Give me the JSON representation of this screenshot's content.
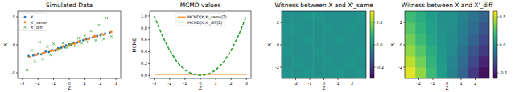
{
  "chart_data": [
    {
      "type": "scatter",
      "title": "Simulated Data",
      "x_label": "Z",
      "y_label": "X",
      "xlim": [
        -3.3,
        3.3
      ],
      "xticks": [
        -3,
        -2,
        -1,
        0,
        1,
        2,
        3
      ],
      "ylim": [
        -6,
        6
      ],
      "yticks": [
        -5,
        0,
        5
      ],
      "legend": "upper left",
      "series": [
        {
          "name": "X",
          "color": "#1f77b4",
          "marker": "circle",
          "x": [
            -2.6,
            -2.3,
            -2.0,
            -1.8,
            -1.5,
            -1.3,
            -1.1,
            -0.9,
            -0.7,
            -0.5,
            -0.3,
            -0.2,
            0,
            0.1,
            0.3,
            0.5,
            0.7,
            0.9,
            1.1,
            1.3,
            1.5,
            1.8,
            2.0,
            2.3,
            2.6
          ],
          "values": [
            -2.0,
            -1.9,
            -1.6,
            -1.7,
            -1.2,
            -1.3,
            -0.9,
            -1.0,
            -0.6,
            -0.5,
            -0.4,
            -0.1,
            0.1,
            0.0,
            0.3,
            0.4,
            0.7,
            0.8,
            1.0,
            1.2,
            1.3,
            1.6,
            1.7,
            2.0,
            2.2
          ]
        },
        {
          "name": "X'_same",
          "color": "#ff7f0e",
          "marker": "circle",
          "x": [
            -2.5,
            -2.2,
            -2.1,
            -1.7,
            -1.6,
            -1.2,
            -1.0,
            -0.8,
            -0.6,
            -0.4,
            -0.35,
            -0.1,
            0.05,
            0.2,
            0.35,
            0.6,
            0.65,
            1.0,
            1.2,
            1.25,
            1.6,
            1.7,
            2.1,
            2.2,
            2.7
          ],
          "values": [
            -2.2,
            -1.7,
            -1.8,
            -1.5,
            -1.4,
            -1.1,
            -1.0,
            -0.8,
            -0.7,
            -0.3,
            -0.2,
            -0.3,
            0.0,
            0.2,
            0.2,
            0.6,
            0.5,
            0.9,
            1.1,
            1.0,
            1.5,
            1.5,
            1.9,
            1.8,
            2.3
          ]
        },
        {
          "name": "X'_diff",
          "color": "#2ca02c",
          "marker": "x",
          "x": [
            -2.7,
            -2.4,
            -2.2,
            -1.9,
            -1.7,
            -1.4,
            -1.2,
            -1.0,
            -0.8,
            -0.6,
            -0.4,
            -0.2,
            0,
            0.2,
            0.4,
            0.6,
            0.8,
            1.0,
            1.2,
            1.4,
            1.7,
            1.9,
            2.2,
            2.4,
            2.7
          ],
          "values": [
            -4.5,
            -1.0,
            -3.0,
            0.5,
            -2.5,
            -0.3,
            -1.8,
            0.2,
            -1.0,
            -0.8,
            0.3,
            -0.5,
            0.1,
            0.4,
            -0.2,
            1.2,
            0.3,
            1.6,
            0.5,
            2.5,
            0.8,
            3.5,
            1.0,
            4.8,
            1.5
          ]
        }
      ]
    },
    {
      "type": "line",
      "title": "MCMD values",
      "x_label": "Z",
      "y_label": "MCMD",
      "x": [
        -3,
        -2.5,
        -2,
        -1.5,
        -1,
        -0.5,
        0,
        0.5,
        1,
        1.5,
        2,
        2.5,
        3
      ],
      "xlim": [
        -3.3,
        3.3
      ],
      "xticks": [
        -3,
        -2,
        -1,
        0,
        1,
        2,
        3
      ],
      "ylim": [
        -0.05,
        1.08
      ],
      "yticks": [
        {
          "value": 0,
          "label": "0.0"
        },
        0.2,
        0.4,
        0.6,
        0.8,
        {
          "value": 1,
          "label": "1.0"
        }
      ],
      "legend": "upper center",
      "series": [
        {
          "name": "MCMD(X,X'_same|Z)",
          "color": "#ff7f0e",
          "line_style": "solid",
          "values": [
            0.02,
            0.02,
            0.02,
            0.02,
            0.02,
            0.02,
            0.02,
            0.02,
            0.02,
            0.02,
            0.02,
            0.02,
            0.02
          ]
        },
        {
          "name": "MCMD(X,X'_diff|Z)",
          "color": "#2ca02c",
          "line_style": "dashed",
          "values": [
            1.0,
            0.68,
            0.42,
            0.22,
            0.09,
            0.02,
            0.0,
            0.02,
            0.09,
            0.22,
            0.42,
            0.68,
            1.0
          ]
        }
      ]
    },
    {
      "type": "heatmap",
      "title": "Witness between X and X'_same",
      "x_label": "Z",
      "y_label": "X",
      "xlim": [
        -3,
        3
      ],
      "xticks": [
        -2,
        -1,
        0,
        1,
        2
      ],
      "ylim": [
        -3,
        3
      ],
      "yticks": [
        -2,
        0,
        2
      ],
      "cells": [
        [
          0.01,
          0.0,
          0.01,
          0.0,
          0.0,
          0.01,
          0.0,
          0.01
        ],
        [
          0.0,
          0.01,
          0.0,
          0.0,
          0.01,
          0.0,
          0.01,
          0.0
        ],
        [
          0.01,
          0.0,
          0.0,
          0.01,
          0.0,
          0.0,
          0.0,
          0.01
        ],
        [
          0.0,
          0.0,
          0.01,
          0.0,
          0.0,
          0.01,
          0.0,
          0.0
        ],
        [
          0.01,
          0.01,
          0.0,
          0.0,
          0.01,
          0.0,
          0.01,
          0.0
        ],
        [
          0.0,
          0.0,
          0.01,
          0.01,
          0.0,
          0.0,
          0.0,
          0.01
        ]
      ],
      "colorbar_range": [
        -0.3,
        0.3
      ],
      "colorbar_ticks": [
        -0.2,
        {
          "value": 0,
          "label": "0.0"
        },
        0.2
      ]
    },
    {
      "type": "heatmap",
      "title": "Witness between X and X'_diff",
      "x_label": "Z",
      "y_label": "X",
      "xlim": [
        -3,
        3
      ],
      "xticks": [
        -2,
        -1,
        0,
        1,
        2
      ],
      "ylim": [
        -3,
        3
      ],
      "yticks": [
        -2,
        0,
        2
      ],
      "cells": [
        [
          0.55,
          0.4,
          0.22,
          0.06,
          -0.06,
          -0.22,
          -0.4,
          -0.55
        ],
        [
          0.48,
          0.34,
          0.18,
          0.05,
          -0.05,
          -0.18,
          -0.34,
          -0.48
        ],
        [
          0.4,
          0.28,
          0.14,
          0.03,
          -0.03,
          -0.14,
          -0.28,
          -0.4
        ],
        [
          0.34,
          0.22,
          0.1,
          0.02,
          -0.02,
          -0.1,
          -0.22,
          -0.34
        ],
        [
          0.28,
          0.18,
          0.08,
          0.01,
          -0.01,
          -0.08,
          -0.18,
          -0.28
        ],
        [
          0.22,
          0.14,
          0.06,
          0.0,
          0.0,
          -0.06,
          -0.14,
          -0.22
        ]
      ],
      "colorbar_range": [
        -0.6,
        0.6
      ],
      "colorbar_ticks": [
        -0.5,
        {
          "value": 0,
          "label": "0.0"
        },
        0.5
      ]
    }
  ]
}
